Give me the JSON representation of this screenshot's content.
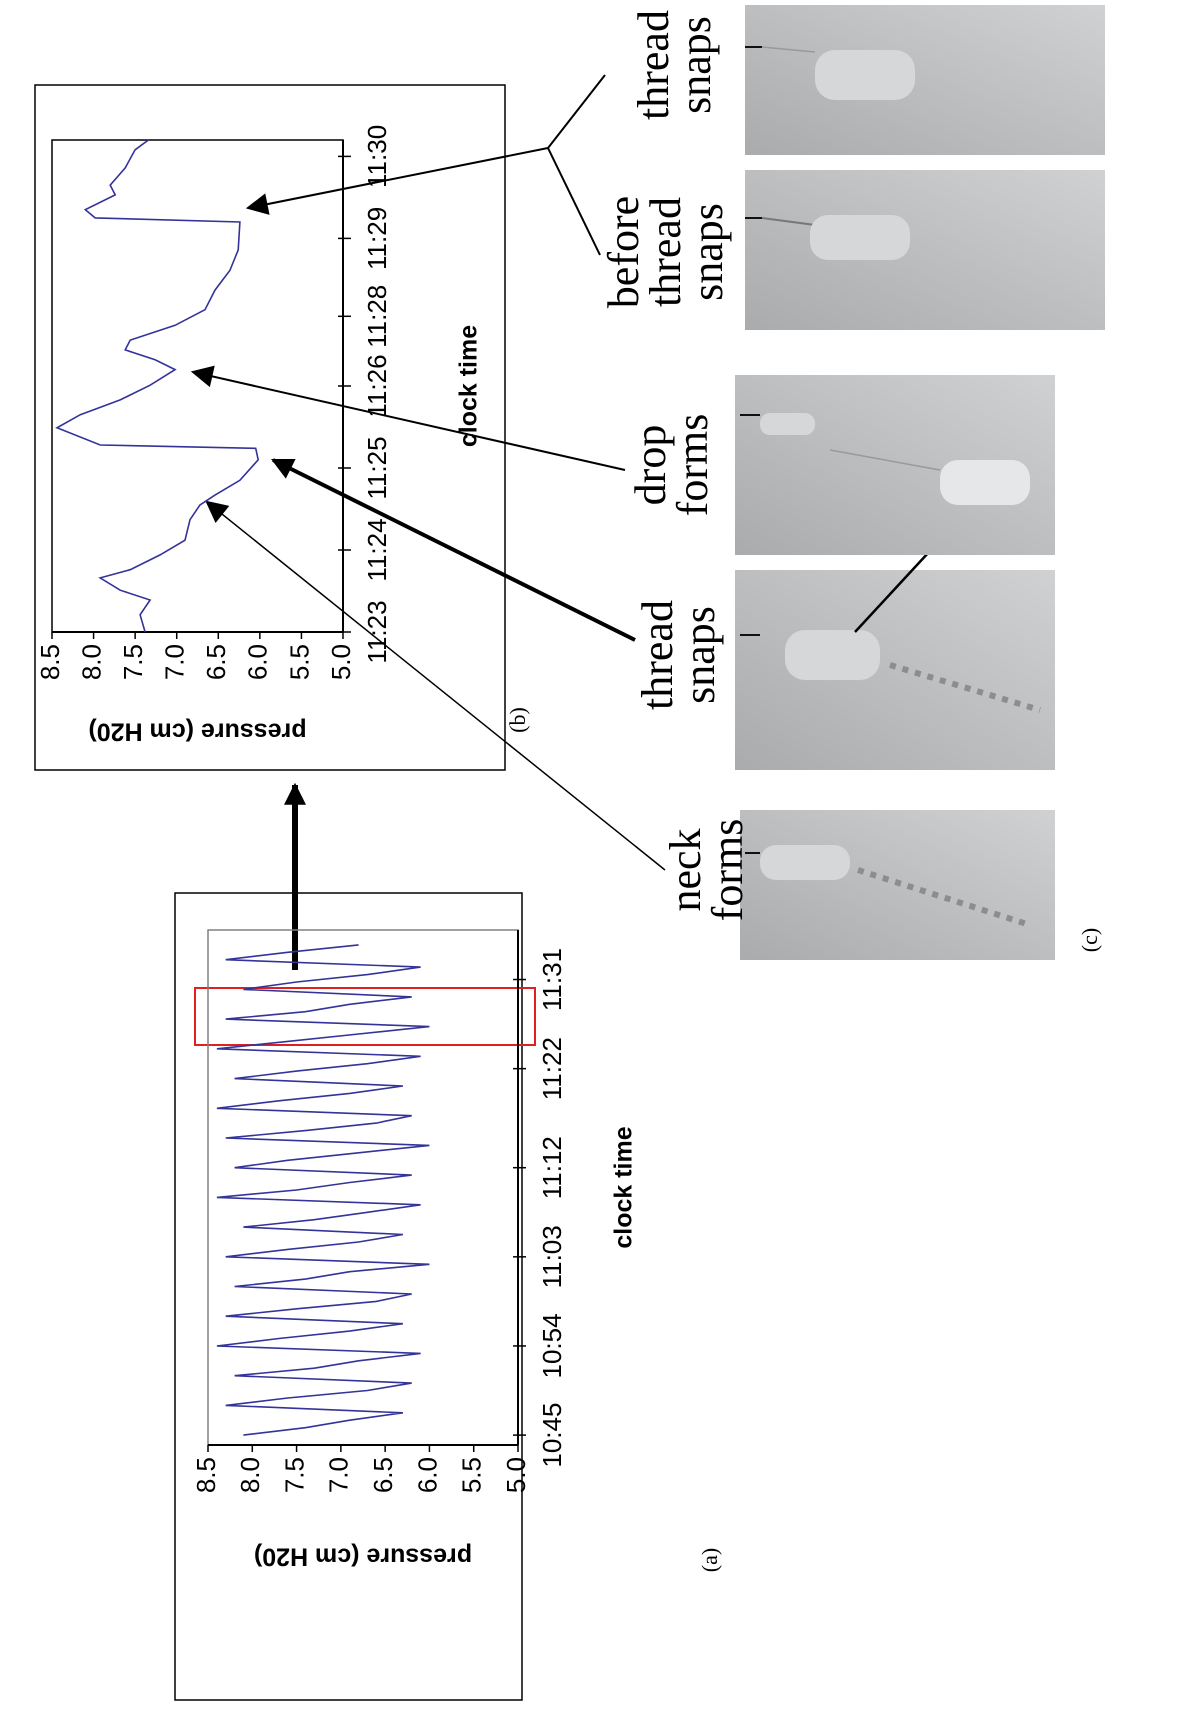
{
  "chart_data": [
    {
      "type": "line",
      "xlabel": "clock time",
      "ylabel": "pressure (cm H20)",
      "color": "#33339a",
      "xlim": [
        644,
        696
      ],
      "xticks": [
        {
          "value": 645,
          "label": "10:45"
        },
        {
          "value": 654,
          "label": "10:54"
        },
        {
          "value": 663,
          "label": "11:03"
        },
        {
          "value": 672,
          "label": "11:12"
        },
        {
          "value": 682,
          "label": "11:22"
        },
        {
          "value": 691,
          "label": "11:31"
        }
      ],
      "ylim": [
        5,
        8.5
      ],
      "yticks": [
        {
          "value": 8.5,
          "label": "8.5"
        },
        {
          "value": 8,
          "label": "8.0"
        },
        {
          "value": 7.5,
          "label": "7.5"
        },
        {
          "value": 7,
          "label": "7.0"
        },
        {
          "value": 6.5,
          "label": "6.5"
        },
        {
          "value": 6,
          "label": "6.0"
        },
        {
          "value": 5.5,
          "label": "5.5"
        },
        {
          "value": 5,
          "label": "5.0"
        }
      ],
      "x": [
        645,
        645.75,
        646.5,
        647.25,
        648,
        648.75,
        649.5,
        650.25,
        651,
        651.75,
        652.5,
        653.25,
        654,
        654.75,
        655.5,
        656.25,
        657,
        657.75,
        658.5,
        659.25,
        660,
        660.75,
        661.5,
        662.25,
        663,
        663.75,
        664.5,
        665.25,
        666,
        666.75,
        667.5,
        668.25,
        669,
        669.75,
        670.5,
        671.25,
        672,
        672.75,
        673.5,
        674.25,
        675,
        675.75,
        676.5,
        677.25,
        678,
        678.75,
        679.5,
        680.25,
        681,
        681.75,
        682.5,
        683.25,
        684,
        684.75,
        685.5,
        686.25,
        687,
        687.75,
        688.5,
        689.25,
        690,
        690.75,
        691.5,
        692.25,
        693,
        693.75,
        694.5
      ],
      "values": [
        8.1,
        7.4,
        6.9,
        6.3,
        8.3,
        7.6,
        6.7,
        6.2,
        8.2,
        7.3,
        6.8,
        6.1,
        8.4,
        7.7,
        6.9,
        6.3,
        8.3,
        7.5,
        6.6,
        6.2,
        8.2,
        7.4,
        6.9,
        6.0,
        8.3,
        7.6,
        6.8,
        6.3,
        8.1,
        7.3,
        6.7,
        6.1,
        8.4,
        7.5,
        6.9,
        6.2,
        8.2,
        7.6,
        6.8,
        6.0,
        8.3,
        7.4,
        6.6,
        6.2,
        8.4,
        7.7,
        6.9,
        6.3,
        8.2,
        7.5,
        6.7,
        6.1,
        8.4,
        7.6,
        6.8,
        6.0,
        8.3,
        7.4,
        6.9,
        6.2,
        8.1,
        7.5,
        6.7,
        6.1,
        8.3,
        7.6,
        6.8
      ]
    },
    {
      "type": "line",
      "xlabel": "clock time",
      "ylabel": "pressure (cm H20)",
      "color": "#33339a",
      "xlim": [
        683,
        689
      ],
      "xticks": [
        {
          "value": 683,
          "label": "11:23"
        },
        {
          "value": 684,
          "label": "11:24"
        },
        {
          "value": 685,
          "label": "11:25"
        },
        {
          "value": 686,
          "label": "11:26"
        },
        {
          "value": 686.85,
          "label": "11:28"
        },
        {
          "value": 687.8,
          "label": "11:29"
        },
        {
          "value": 688.8,
          "label": "11:30"
        }
      ],
      "ylim": [
        5,
        8.5
      ],
      "yticks": [
        {
          "value": 8.5,
          "label": "8.5"
        },
        {
          "value": 8,
          "label": "8.0"
        },
        {
          "value": 7.5,
          "label": "7.5"
        },
        {
          "value": 7,
          "label": "7.0"
        },
        {
          "value": 6.5,
          "label": "6.5"
        },
        {
          "value": 6,
          "label": "6.0"
        },
        {
          "value": 5.5,
          "label": "5.5"
        },
        {
          "value": 5,
          "label": "5.0"
        }
      ],
      "x": [
        683.0,
        683.21,
        683.39,
        683.51,
        683.66,
        683.76,
        683.94,
        684.12,
        684.37,
        684.55,
        684.67,
        684.85,
        685.1,
        685.24,
        685.28,
        685.49,
        685.65,
        685.83,
        686.01,
        686.2,
        686.32,
        686.44,
        686.56,
        686.74,
        686.93,
        687.17,
        687.41,
        687.66,
        688.0,
        688.05,
        688.15,
        688.33,
        688.45,
        688.66,
        688.88,
        689.0
      ],
      "values": [
        7.38,
        7.44,
        7.32,
        7.68,
        7.92,
        7.56,
        7.2,
        6.9,
        6.84,
        6.72,
        6.54,
        6.24,
        6.02,
        6.05,
        7.92,
        8.44,
        8.16,
        7.68,
        7.32,
        7.02,
        7.26,
        7.62,
        7.56,
        7.02,
        6.66,
        6.54,
        6.36,
        6.26,
        6.24,
        7.98,
        8.1,
        7.74,
        7.8,
        7.62,
        7.5,
        7.34
      ]
    }
  ],
  "figure": {
    "panel_labels": [
      "(a)",
      "(b)",
      "(c)"
    ],
    "captions": [
      [
        "neck",
        "forms"
      ],
      [
        "thread",
        "snaps"
      ],
      [
        "drop",
        "forms"
      ],
      [
        "before",
        "thread",
        "snaps"
      ],
      [
        "thread",
        "snaps"
      ]
    ]
  }
}
